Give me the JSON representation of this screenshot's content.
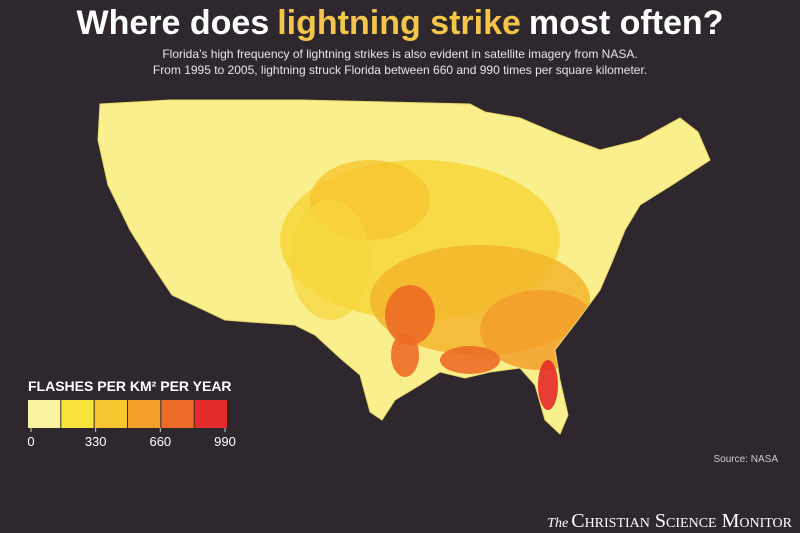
{
  "header": {
    "title_parts": [
      "Where does",
      "lightning strike",
      "most often?"
    ],
    "subtitle": [
      "Florida’s high frequency of lightning strikes is also evident in satellite imagery from NASA.",
      "From 1995 to 2005, lightning struck Florida between 660 and 990 times per square kilometer."
    ]
  },
  "legend": {
    "title": "FLASHES PER KM² PER YEAR",
    "colors": [
      "#fcf3a0",
      "#f9e43c",
      "#f6c52f",
      "#f29f2a",
      "#ec6c25",
      "#e42a2a"
    ],
    "ticks": [
      0,
      330,
      660,
      990
    ]
  },
  "source": "Source: NASA",
  "brand": {
    "prefix": "The",
    "name": "Christian Science Monitor"
  }
}
